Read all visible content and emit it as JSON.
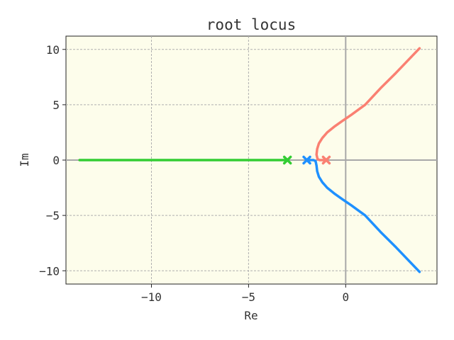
{
  "chart_data": {
    "type": "line",
    "title": "root locus",
    "xlabel": "Re",
    "ylabel": "Im",
    "xlim": [
      -14.4,
      4.7
    ],
    "ylim": [
      -11.2,
      11.2
    ],
    "xticks": [
      -10,
      -5,
      0
    ],
    "xtick_labels": [
      "−10",
      "−5",
      "0"
    ],
    "yticks": [
      -10,
      -5,
      0,
      5,
      10
    ],
    "ytick_labels": [
      "−10",
      "−5",
      "0",
      "5",
      "10"
    ],
    "grid": true,
    "background_color": "#fdfdeb",
    "series": [
      {
        "color": "#fa8072",
        "x": [
          -1.0,
          -1.2,
          -1.35,
          -1.45,
          -1.5,
          -1.47,
          -1.38,
          -1.2,
          -0.95,
          -0.6,
          -0.2,
          0.3,
          1.0,
          1.8,
          2.6,
          3.8
        ],
        "y": [
          0.0,
          0.0,
          0.0,
          0.1,
          0.5,
          1.0,
          1.5,
          2.0,
          2.5,
          3.0,
          3.5,
          4.1,
          5.0,
          6.5,
          7.9,
          10.1
        ]
      },
      {
        "color": "#1e90ff",
        "x": [
          -2.0,
          -1.8,
          -1.65,
          -1.55,
          -1.5,
          -1.47,
          -1.38,
          -1.2,
          -0.95,
          -0.6,
          -0.2,
          0.3,
          1.0,
          1.8,
          2.6,
          3.8
        ],
        "y": [
          0.0,
          0.0,
          0.0,
          -0.1,
          -0.5,
          -1.0,
          -1.5,
          -2.0,
          -2.5,
          -3.0,
          -3.5,
          -4.1,
          -5.0,
          -6.5,
          -7.9,
          -10.1
        ]
      },
      {
        "color": "#32cd32",
        "x": [
          -3.0,
          -13.7
        ],
        "y": [
          0.0,
          0.0
        ]
      }
    ],
    "poles": [
      {
        "re": -1,
        "im": 0,
        "color": "#fa8072"
      },
      {
        "re": -2,
        "im": 0,
        "color": "#1e90ff"
      },
      {
        "re": -3,
        "im": 0,
        "color": "#32cd32"
      }
    ]
  }
}
